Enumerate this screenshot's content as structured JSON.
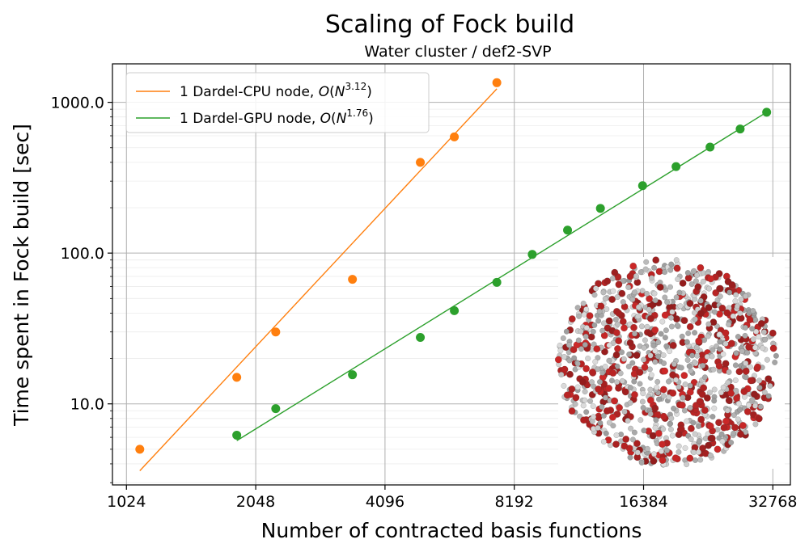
{
  "chart_data": {
    "type": "scatter",
    "title": "Scaling of Fock build",
    "subtitle": "Water cluster / def2-SVP",
    "xlabel": "Number of contracted basis functions",
    "ylabel": "Time spent in Fock build [sec]",
    "x_scale": "log2",
    "y_scale": "log10",
    "xlim": [
      950,
      36000
    ],
    "ylim": [
      2.9,
      1800
    ],
    "x_ticks": [
      1024,
      2048,
      4096,
      8192,
      16384,
      32768
    ],
    "x_tick_labels": [
      "1024",
      "2048",
      "4096",
      "8192",
      "16384",
      "32768"
    ],
    "y_ticks": [
      10,
      100,
      1000
    ],
    "y_tick_labels": [
      "10.0",
      "100.0",
      "1000.0"
    ],
    "grid": true,
    "legend_position": "top-left",
    "series": [
      {
        "name": "1 Dardel-CPU node, O(N^3.12)",
        "legend_prefix": "1 Dardel-CPU node, ",
        "legend_func": "O",
        "legend_open": "(",
        "legend_var": "N",
        "legend_exp": "3.12",
        "legend_close": ")",
        "color": "#ff7f0e",
        "x": [
          1100,
          1850,
          2280,
          3440,
          4950,
          5940,
          7460
        ],
        "y": [
          5.0,
          15.0,
          30.0,
          67.0,
          400,
          590,
          1350
        ],
        "fit": {
          "x": [
            1100,
            7460
          ],
          "y": [
            3.6,
            1230
          ]
        }
      },
      {
        "name": "1 Dardel-GPU node, O(N^1.76)",
        "legend_prefix": "1 Dardel-GPU node, ",
        "legend_func": "O",
        "legend_open": "(",
        "legend_var": "N",
        "legend_exp": "1.76",
        "legend_close": ")",
        "color": "#2ca02c",
        "x": [
          1850,
          2280,
          3440,
          4950,
          5940,
          7460,
          9020,
          10900,
          13000,
          16300,
          19500,
          23400,
          27500,
          31700
        ],
        "y": [
          6.2,
          9.3,
          15.6,
          27.6,
          41.5,
          64.0,
          98.0,
          142,
          198,
          280,
          375,
          505,
          665,
          860
        ],
        "fit": {
          "x": [
            1850,
            31700
          ],
          "y": [
            5.7,
            860
          ]
        }
      }
    ],
    "inset_image": "water-cluster-molecules"
  }
}
